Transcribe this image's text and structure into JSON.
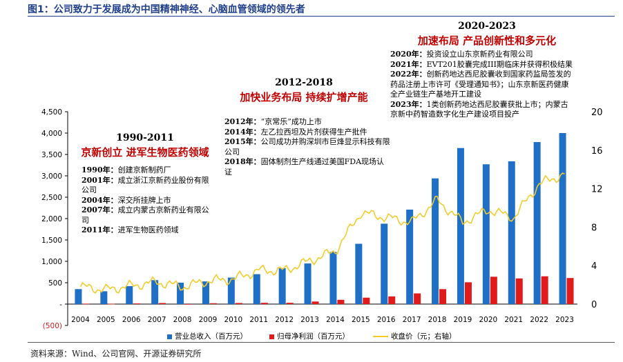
{
  "figure_title": "图1：公司致力于发展成为中国精神神经、心脑血管领域的领先者",
  "source": "资料来源：Wind、公司官网、开源证券研究所",
  "colors": {
    "revenue": "#1f6fc6",
    "profit": "#e01b1b",
    "price": "#f2cc2c",
    "phase_text": "#c00000",
    "title": "#1f3e8c"
  },
  "phases": [
    {
      "title": "1990-2011",
      "subtitle": "京新创立 进军生物医药领域",
      "events": [
        {
          "year": "1990年：",
          "text": "创建京新制药厂"
        },
        {
          "year": "2001年：",
          "text": "成立浙江京新药业股份有限公司"
        },
        {
          "year": "2004年：",
          "text": "深交所挂牌上市"
        },
        {
          "year": "2007年：",
          "text": "成立内蒙古京新药业有限公司"
        },
        {
          "year": "2011年：",
          "text": "进军生物医药领域"
        }
      ]
    },
    {
      "title": "2012-2018",
      "subtitle": "加快业务布局 持续扩增产能",
      "events": [
        {
          "year": "2012年：",
          "text": "“京常乐”成功上市"
        },
        {
          "year": "2014年：",
          "text": "左乙拉西坦及片剂获得生产批件"
        },
        {
          "year": "2015年：",
          "text": "公司成功并购深圳市巨烽显示科技有限公司"
        },
        {
          "year": "2018年：",
          "text": "固体制剂生产线通过美国FDA现场认证"
        }
      ]
    },
    {
      "title": "2020-2023",
      "subtitle": "加速布局 产品创新性和多元化",
      "events": [
        {
          "year": "2020年：",
          "text": "投资设立山东京新药业有限公司"
        },
        {
          "year": "2021年：",
          "text": "EVT201胶囊完成III期临床并获得积极结果"
        },
        {
          "year": "2022年：",
          "text": "创新药地达西尼胶囊收到国家药监局签发的药品注册上市许可《受理通知书》；山东京新医药健康全产业链生产基地开工建设"
        },
        {
          "year": "2023年：",
          "text": "1类创新药地达西尼胶囊获批上市；内蒙古京新中药智造数字化生产建设项目投产"
        }
      ]
    }
  ],
  "chart_data": {
    "type": "bar",
    "categories": [
      "2004",
      "2005",
      "2006",
      "2007",
      "2008",
      "2009",
      "2010",
      "2011",
      "2012",
      "2013",
      "2014",
      "2015",
      "2016",
      "2017",
      "2018",
      "2019",
      "2020",
      "2021",
      "2022",
      "2023"
    ],
    "series": [
      {
        "name": "营业总收入（百万元）",
        "axis": "left",
        "kind": "bar",
        "values": [
          350,
          300,
          420,
          560,
          500,
          530,
          620,
          700,
          840,
          950,
          1220,
          1410,
          1880,
          2210,
          2940,
          3650,
          3270,
          3340,
          3790,
          4000
        ]
      },
      {
        "name": "归母净利润（百万元）",
        "axis": "left",
        "kind": "bar",
        "values": [
          10,
          5,
          15,
          25,
          -10,
          20,
          25,
          30,
          30,
          60,
          100,
          150,
          180,
          250,
          350,
          510,
          640,
          600,
          650,
          610
        ]
      },
      {
        "name": "收盘价（元；右轴）",
        "axis": "right",
        "kind": "line",
        "values": [
          1.8,
          1.5,
          1.9,
          2.3,
          1.8,
          2.4,
          2.6,
          3.5,
          3.5,
          4.5,
          5.5,
          9.5,
          9.0,
          8.5,
          10.8,
          8.5,
          9.8,
          9.0,
          12.5,
          13.5
        ]
      }
    ],
    "left_axis": {
      "ylim": [
        -500,
        4500
      ],
      "ticks": [
        "(500)",
        "-",
        "500",
        "1,000",
        "1,500",
        "2,000",
        "2,500",
        "3,000",
        "3,500",
        "4,000",
        "4,500"
      ]
    },
    "right_axis": {
      "ylim": [
        0,
        20
      ],
      "ticks": [
        "0",
        "4",
        "8",
        "12",
        "16",
        "20"
      ]
    },
    "legend_position": "bottom"
  }
}
